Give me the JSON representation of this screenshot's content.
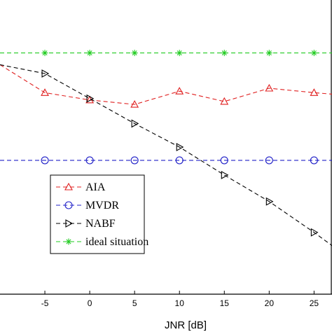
{
  "chart_data": {
    "type": "line",
    "title": "",
    "xlabel": "JNR [dB]",
    "ylabel": "",
    "xlim": [
      -10,
      27
    ],
    "ylim": [
      0,
      100
    ],
    "x_ticks": [
      -5,
      0,
      5,
      10,
      15,
      20,
      25
    ],
    "x_tick_labels": [
      "-5",
      "0",
      "5",
      "10",
      "15",
      "20",
      "25"
    ],
    "grid": false,
    "legend_position": "lower-left",
    "series": [
      {
        "name": "AIA",
        "color": "#e02020",
        "marker": "triangle-up",
        "dash": "dashed",
        "x": [
          -10,
          -5,
          0,
          5,
          10,
          15,
          20,
          25,
          27
        ],
        "y": [
          78,
          68.5,
          66,
          64.5,
          69,
          65.5,
          70,
          68.5,
          68
        ]
      },
      {
        "name": "MVDR",
        "color": "#2020c8",
        "marker": "circle",
        "dash": "dashed",
        "x": [
          -10,
          -5,
          0,
          5,
          10,
          15,
          20,
          25,
          27
        ],
        "y": [
          45.5,
          45.5,
          45.5,
          45.5,
          45.5,
          45.5,
          45.5,
          45.5,
          45.5
        ]
      },
      {
        "name": "NABF",
        "color": "#000000",
        "marker": "triangle-right",
        "dash": "dashed",
        "x": [
          -10,
          -5,
          0,
          5,
          10,
          15,
          20,
          25,
          27
        ],
        "y": [
          78,
          75,
          66.5,
          58,
          50,
          40.5,
          31.5,
          21,
          16.5
        ]
      },
      {
        "name": "ideal situation",
        "color": "#22cc22",
        "marker": "asterisk",
        "dash": "dashed",
        "x": [
          -10,
          -5,
          0,
          5,
          10,
          15,
          20,
          25,
          27
        ],
        "y": [
          82,
          82,
          82,
          82,
          82,
          82,
          82,
          82,
          82
        ]
      }
    ]
  }
}
